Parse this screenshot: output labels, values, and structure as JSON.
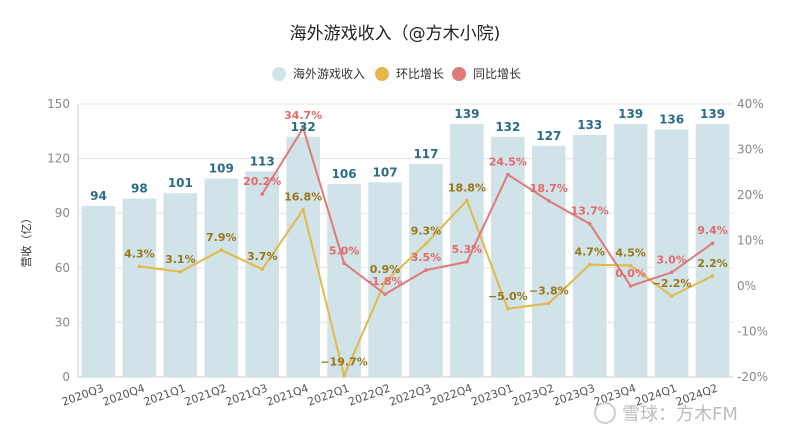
{
  "chart_data": {
    "type": "bar",
    "title": "海外游戏收入（@方木小院)",
    "ylabel": "营收（亿）",
    "categories": [
      "2020Q3",
      "2020Q4",
      "2021Q1",
      "2021Q2",
      "2021Q3",
      "2021Q4",
      "2022Q1",
      "2022Q2",
      "2022Q3",
      "2022Q4",
      "2023Q1",
      "2023Q2",
      "2023Q3",
      "2023Q4",
      "2024Q1",
      "2024Q2"
    ],
    "ylim": [
      0,
      150
    ],
    "yticks": [
      "0",
      "30",
      "60",
      "90",
      "120",
      "150"
    ],
    "y2lim": [
      -20,
      40
    ],
    "y2ticks": [
      "-20%",
      "-10%",
      "0%",
      "10%",
      "20%",
      "30%",
      "40%"
    ],
    "legend_position": "top-center",
    "series": [
      {
        "name": "海外游戏收入",
        "kind": "bar",
        "color": "#cfe3e8",
        "label_color": "#2b6c86",
        "values": [
          94,
          98,
          101,
          109,
          113,
          132,
          106,
          107,
          117,
          139,
          132,
          127,
          133,
          139,
          136,
          139
        ],
        "labels": [
          "94",
          "98",
          "101",
          "109",
          "113",
          "132",
          "106",
          "107",
          "117",
          "139",
          "132",
          "127",
          "133",
          "139",
          "136",
          "139"
        ]
      },
      {
        "name": "环比增长",
        "kind": "line",
        "axis": "right",
        "color": "#e3b84a",
        "label_color": "#9a7618",
        "values": [
          null,
          4.3,
          3.1,
          7.9,
          3.7,
          16.8,
          -19.7,
          0.9,
          9.3,
          18.8,
          -5.0,
          -3.8,
          4.7,
          4.5,
          -2.2,
          2.2
        ],
        "labels": [
          "",
          "4.3%",
          "3.1%",
          "7.9%",
          "3.7%",
          "16.8%",
          "−19.7%",
          "0.9%",
          "9.3%",
          "18.8%",
          "−5.0%",
          "−3.8%",
          "4.7%",
          "4.5%",
          "−2.2%",
          "2.2%"
        ]
      },
      {
        "name": "同比增长",
        "kind": "line",
        "axis": "right",
        "color": "#e07a7a",
        "label_color": "#e36a6a",
        "values": [
          null,
          null,
          null,
          null,
          20.2,
          34.7,
          5.0,
          -1.8,
          3.5,
          5.3,
          24.5,
          18.7,
          13.7,
          0.0,
          3.0,
          9.4
        ],
        "labels": [
          "",
          "",
          "",
          "",
          "20.2%",
          "34.7%",
          "5.0%",
          "-1.8%",
          "3.5%",
          "5.3%",
          "24.5%",
          "18.7%",
          "13.7%",
          "0.0%",
          "3.0%",
          "9.4%"
        ]
      }
    ]
  },
  "watermark": "雪球：方木FM"
}
